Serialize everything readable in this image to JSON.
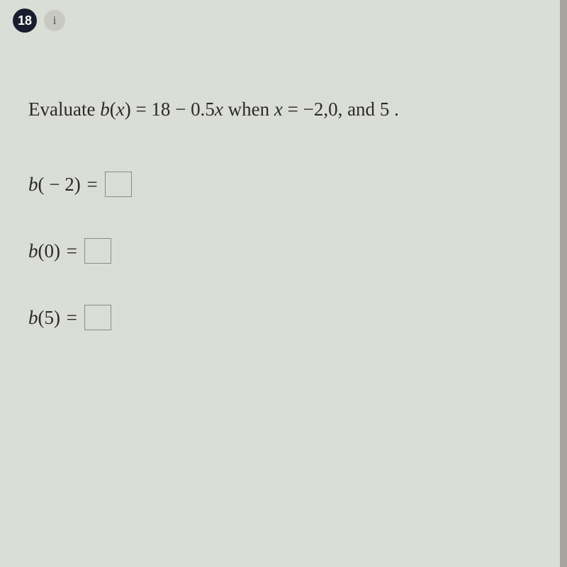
{
  "header": {
    "question_number": "18",
    "info_label": "i"
  },
  "prompt": {
    "prefix": "Evaluate ",
    "func": "b",
    "paren_open": "(",
    "var": "x",
    "paren_close": ")",
    "eq": " = ",
    "const1": "18",
    "minus": " − ",
    "coef": "0.5",
    "var2": "x",
    "when": " when ",
    "var3": "x",
    "eq2": " = ",
    "vals": "−2,0,",
    "and": " and ",
    "lastval": "5",
    "period": " ."
  },
  "answers": [
    {
      "func": "b",
      "paren_open": "(",
      "inside_pre": " − ",
      "inside_val": "2",
      "paren_close": ")",
      "eq": " = ",
      "value": ""
    },
    {
      "func": "b",
      "paren_open": "(",
      "inside_pre": "",
      "inside_val": "0",
      "paren_close": ")",
      "eq": " = ",
      "value": ""
    },
    {
      "func": "b",
      "paren_open": "(",
      "inside_pre": "",
      "inside_val": "5",
      "paren_close": ")",
      "eq": " = ",
      "value": ""
    }
  ],
  "colors": {
    "badge_bg": "#1a1d2e",
    "info_bg": "#c7c9c2",
    "text": "#2a2a2a",
    "input_border": "#8a8c85"
  }
}
